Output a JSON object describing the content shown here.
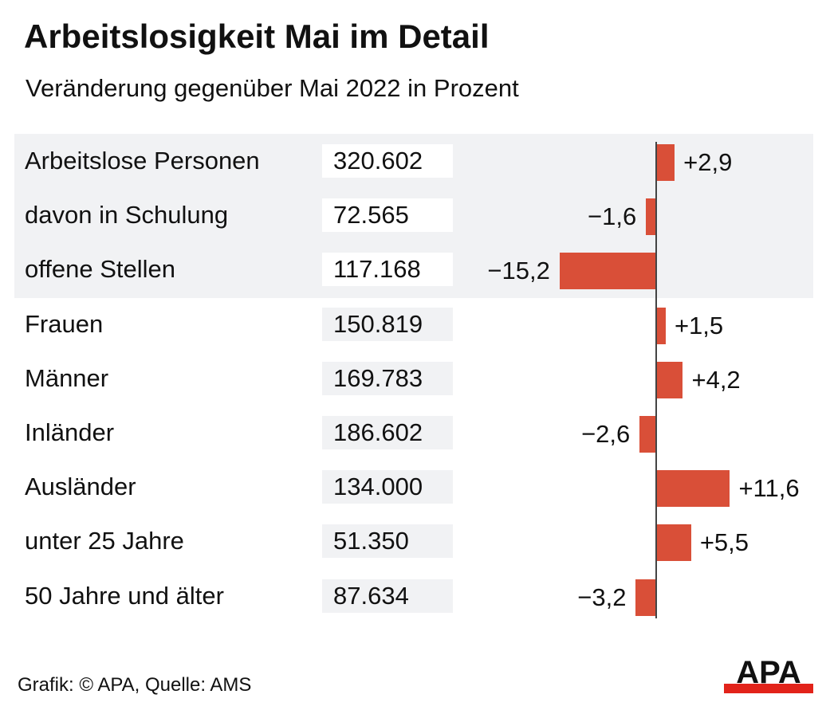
{
  "title": "Arbeitslosigkeit Mai im Detail",
  "subtitle": "Veränderung gegenüber Mai 2022 in Prozent",
  "source": "Grafik: © APA, Quelle: AMS",
  "logo_text": "APA",
  "colors": {
    "bar": "#d94f38",
    "band": "#f1f2f4",
    "logo_red": "#e2231a"
  },
  "chart_data": {
    "type": "bar",
    "orientation": "horizontal",
    "title": "Arbeitslosigkeit Mai im Detail",
    "subtitle": "Veränderung gegenüber Mai 2022 in Prozent",
    "categories": [
      "Arbeitslose Personen",
      "davon in Schulung",
      "offene Stellen",
      "Frauen",
      "Männer",
      "Inländer",
      "Ausländer",
      "unter 25 Jahre",
      "50 Jahre und älter"
    ],
    "absolute_values": [
      "320.602",
      "72.565",
      "117.168",
      "150.819",
      "169.783",
      "186.602",
      "134.000",
      "51.350",
      "87.634"
    ],
    "values": [
      2.9,
      -1.6,
      -15.2,
      1.5,
      4.2,
      -2.6,
      11.6,
      5.5,
      -3.2
    ],
    "value_labels": [
      "+2,9",
      "−1,6",
      "−15,2",
      "+1,5",
      "+4,2",
      "−2,6",
      "+11,6",
      "+5,5",
      "−3,2"
    ],
    "groups": [
      0,
      0,
      0,
      1,
      1,
      1,
      1,
      1,
      1
    ],
    "grid": false
  }
}
